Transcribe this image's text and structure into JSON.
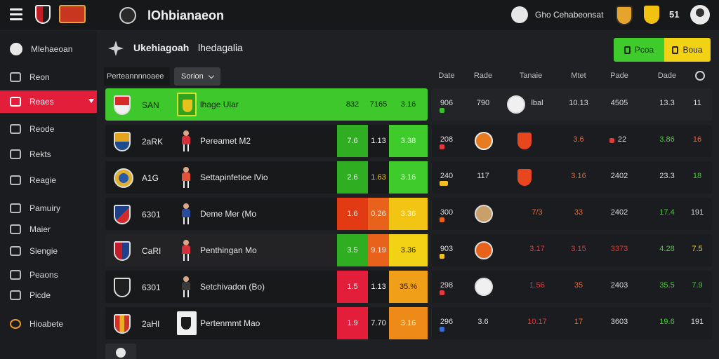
{
  "app": {
    "brand": "lOhbianaeon",
    "user_text": "Gho Cehabeonsat",
    "notification_count": "51"
  },
  "sidebar": {
    "items": [
      {
        "label": "Mlehaeoan",
        "icon": "user-circle-icon"
      },
      {
        "label": "Reon",
        "icon": "document-icon"
      },
      {
        "label": "Reaes",
        "icon": "calendar-icon",
        "active": true
      },
      {
        "label": "Reode",
        "icon": "edit-icon"
      },
      {
        "label": "Rekts",
        "icon": "share-icon"
      },
      {
        "label": "Reagie",
        "icon": "list-icon"
      },
      {
        "label": "Pamuiry",
        "icon": "chart-icon"
      },
      {
        "label": "Maier",
        "icon": "tools-icon"
      },
      {
        "label": "Siengie",
        "icon": "clock-icon"
      },
      {
        "label": "Peaons",
        "icon": "bookmark-icon"
      },
      {
        "label": "Picde",
        "icon": "grid-icon"
      },
      {
        "label": "Hioabete",
        "icon": "coin-icon"
      }
    ]
  },
  "main": {
    "title": "Ukehiagoah",
    "subtitle": "lhedagalia",
    "btn_green": "Pcoa",
    "btn_yellow": "Boua",
    "filter_label": "Perteannnnoaee",
    "filter_select": "Sorion",
    "columns": [
      "Date",
      "Rade",
      "Tanaie",
      "Mtet",
      "Pade",
      "Dade"
    ]
  },
  "rows": [
    {
      "code": "SAN",
      "name": "lhage Ular",
      "c1": "832",
      "c2": "7165",
      "c3": "3.16",
      "r1": "906",
      "r2": "790",
      "r3": "lbal",
      "r4": "10.13",
      "r5": "4505",
      "r6": "13.3",
      "r7": "11"
    },
    {
      "code": "2aRK",
      "name": "Pereamet M2",
      "c1": "7.6",
      "c2": "1.13",
      "c3": "3.38",
      "r1": "208",
      "r2": "",
      "r3": "",
      "r4": "3.6",
      "r5": "22",
      "r6": "3.86",
      "r7": "16"
    },
    {
      "code": "A1G",
      "name": "Settapinfetioe lVio",
      "c1": "2.6",
      "c2": "1.63",
      "c3": "3.16",
      "r1": "240",
      "r2": "117",
      "r3": "",
      "r4": "3.16",
      "r5": "2402",
      "r6": "23.3",
      "r7": "18"
    },
    {
      "code": "6301",
      "name": "Deme Mer (Mo",
      "c1": "1.6",
      "c2": "0.26",
      "c3": "3.36",
      "r1": "300",
      "r2": "",
      "r3": "7/3",
      "r4": "33",
      "r5": "2402",
      "r6": "17.4",
      "r7": "191"
    },
    {
      "code": "CaRI",
      "name": "Penthingan Mo",
      "c1": "3.5",
      "c2": "9.19",
      "c3": "3.36",
      "r1": "903",
      "r2": "",
      "r3": "3.17",
      "r4": "3.15",
      "r5": "3373",
      "r6": "4.28",
      "r7": "7.5"
    },
    {
      "code": "6301",
      "name": "Setchivadon (Bo)",
      "c1": "1.5",
      "c2": "1.13",
      "c3": "35.%",
      "r1": "298",
      "r2": "",
      "r3": "1.56",
      "r4": "35",
      "r5": "2403",
      "r6": "35.5",
      "r7": "7.9"
    },
    {
      "code": "2aHI",
      "name": "Pertenmmt Mao",
      "c1": "1.9",
      "c2": "7.70",
      "c3": "3.16",
      "r1": "296",
      "r2": "3.6",
      "r3": "10.17",
      "r4": "17",
      "r5": "3603",
      "r6": "19.6",
      "r7": "191"
    }
  ]
}
